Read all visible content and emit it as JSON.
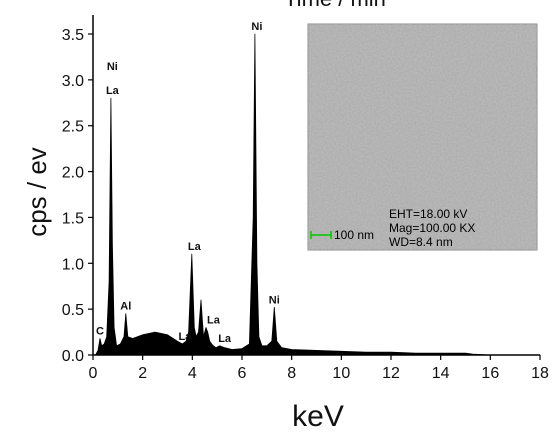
{
  "chart_data": {
    "type": "area",
    "top_title_partial": "Time / min",
    "xlabel": "keV",
    "ylabel": "cps / ev",
    "xlim": [
      0,
      18
    ],
    "ylim": [
      0,
      3.7
    ],
    "x_ticks": [
      "0",
      "2",
      "4",
      "6",
      "8",
      "10",
      "12",
      "14",
      "16",
      "18"
    ],
    "y_ticks": [
      "0.0",
      "0.5",
      "1.0",
      "1.5",
      "2.0",
      "2.5",
      "3.0",
      "3.5"
    ],
    "x_tick_values": [
      0,
      2,
      4,
      6,
      8,
      10,
      12,
      14,
      16,
      18
    ],
    "y_tick_values": [
      0.0,
      0.5,
      1.0,
      1.5,
      2.0,
      2.5,
      3.0,
      3.5
    ],
    "series": [
      {
        "type": "area",
        "color": "#000000",
        "x": [
          0.1,
          0.2,
          0.28,
          0.35,
          0.45,
          0.55,
          0.65,
          0.72,
          0.78,
          0.85,
          0.95,
          1.1,
          1.25,
          1.32,
          1.4,
          1.6,
          2.0,
          2.5,
          3.0,
          3.4,
          3.6,
          3.75,
          3.85,
          3.98,
          4.08,
          4.15,
          4.25,
          4.35,
          4.45,
          4.55,
          4.62,
          4.7,
          4.78,
          4.85,
          4.95,
          5.1,
          5.3,
          5.6,
          6.0,
          6.3,
          6.45,
          6.52,
          6.6,
          6.68,
          6.8,
          7.0,
          7.2,
          7.3,
          7.4,
          7.6,
          8.0,
          9.0,
          10.0,
          11.0,
          12.0,
          13.0,
          14.0,
          15.0,
          15.3,
          16.0,
          18.0
        ],
        "y": [
          0.0,
          0.05,
          0.18,
          0.1,
          0.12,
          0.2,
          0.8,
          2.8,
          1.2,
          0.3,
          0.1,
          0.12,
          0.2,
          0.45,
          0.2,
          0.18,
          0.22,
          0.25,
          0.22,
          0.15,
          0.12,
          0.15,
          0.25,
          1.1,
          0.3,
          0.2,
          0.25,
          0.6,
          0.2,
          0.3,
          0.25,
          0.15,
          0.12,
          0.1,
          0.08,
          0.1,
          0.08,
          0.06,
          0.07,
          0.12,
          1.5,
          3.5,
          1.0,
          0.2,
          0.1,
          0.1,
          0.15,
          0.52,
          0.15,
          0.08,
          0.06,
          0.05,
          0.04,
          0.03,
          0.03,
          0.02,
          0.02,
          0.02,
          0.01,
          0.0,
          0.0
        ]
      }
    ],
    "peak_labels": [
      {
        "text": "Ni",
        "x": 0.78,
        "y": 2.8,
        "offset": 3
      },
      {
        "text": "La",
        "x": 0.78,
        "y": 2.8,
        "offset": 1
      },
      {
        "text": "Al",
        "x": 1.32,
        "y": 0.45,
        "offset": 1
      },
      {
        "text": "C",
        "x": 0.28,
        "y": 0.18,
        "offset": 1
      },
      {
        "text": "La",
        "x": 4.08,
        "y": 1.1,
        "offset": 1
      },
      {
        "text": "La",
        "x": 3.7,
        "y": 0.12,
        "offset": 1
      },
      {
        "text": "La",
        "x": 4.85,
        "y": 0.3,
        "offset": 1
      },
      {
        "text": "La",
        "x": 5.3,
        "y": 0.1,
        "offset": 1
      },
      {
        "text": "Ni",
        "x": 6.6,
        "y": 3.5,
        "offset": 1
      },
      {
        "text": "Ni",
        "x": 7.3,
        "y": 0.52,
        "offset": 1
      }
    ],
    "inset": {
      "scale_bar_label": "100 nm",
      "scale_bar_color": "#00c800",
      "info_lines": [
        "EHT=18.00 kV",
        "Mag=100.00 KX",
        "WD=8.4 nm"
      ]
    },
    "grid": false,
    "legend": "none"
  }
}
